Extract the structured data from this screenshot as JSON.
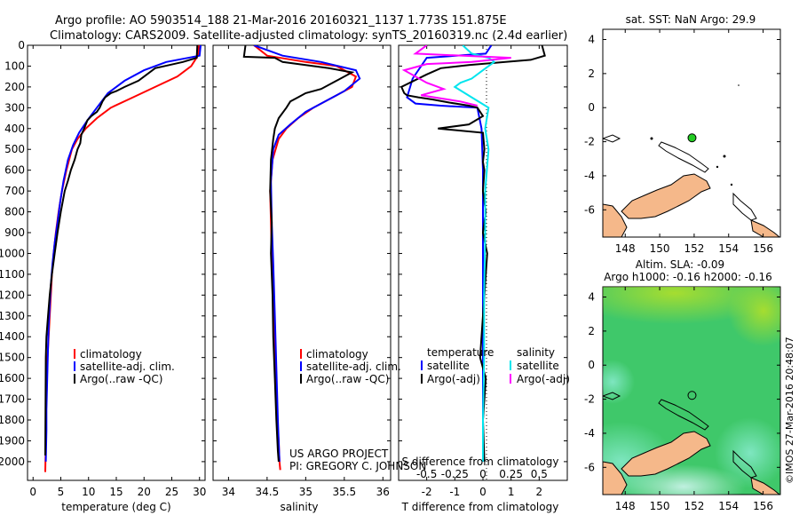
{
  "header": {
    "line1": "Argo profile: AO 5903514_188 21-Mar-2016 20160321_1137 1.773S 151.875E",
    "line2": "Climatology: CARS2009. Satellite-adjusted climatology: synTS_20160319.nc (2.4d earlier)"
  },
  "colors": {
    "climatology": "#ff0000",
    "satellite": "#0000ff",
    "argo": "#000000",
    "salinity_satellite": "#00e5ee",
    "salinity_argo": "#ff00ff",
    "land": "#f5b88a",
    "float_marker_green": "#22cc22"
  },
  "chart_data": [
    {
      "type": "line",
      "name": "temperature-profile",
      "xlabel": "temperature (deg C)",
      "xlim": [
        -1,
        31
      ],
      "xticks": [
        0,
        5,
        10,
        15,
        20,
        25,
        30
      ],
      "ylim": [
        2090,
        0
      ],
      "yticks": [
        0,
        100,
        200,
        300,
        400,
        500,
        600,
        700,
        800,
        900,
        1000,
        1100,
        1200,
        1300,
        1400,
        1500,
        1600,
        1700,
        1800,
        1900,
        2000
      ],
      "legend": {
        "position": "lower-left",
        "items": [
          "climatology",
          "satellite-adj. clim.",
          "Argo(..raw -QC)"
        ]
      },
      "series": [
        {
          "name": "climatology",
          "color": "#ff0000",
          "x": [
            29.9,
            29.7,
            28.5,
            26,
            22,
            18,
            14,
            11.5,
            9.5,
            8,
            7,
            6,
            5.2,
            4.6,
            4.1,
            3.7,
            3.4,
            3.2,
            3,
            2.8,
            2.6,
            2.5,
            2.4,
            2.3,
            2.3,
            2.2
          ],
          "y": [
            0,
            50,
            100,
            150,
            200,
            250,
            300,
            350,
            400,
            450,
            500,
            600,
            700,
            800,
            900,
            1000,
            1100,
            1200,
            1300,
            1400,
            1500,
            1600,
            1700,
            1800,
            1900,
            2050
          ]
        },
        {
          "name": "satellite-adj. clim.",
          "color": "#0000ff",
          "x": [
            30.2,
            30,
            24,
            20,
            16.5,
            13.5,
            11.5,
            9.8,
            8.3,
            7.2,
            6.3,
            5.5,
            4.9,
            4.4,
            3.9,
            3.5,
            3.2,
            3,
            2.8,
            2.7,
            2.6,
            2.5,
            2.4,
            2.4,
            2.3
          ],
          "y": [
            0,
            50,
            80,
            120,
            170,
            230,
            300,
            360,
            420,
            480,
            550,
            650,
            750,
            850,
            950,
            1050,
            1150,
            1250,
            1350,
            1450,
            1550,
            1650,
            1750,
            1850,
            2000
          ]
        },
        {
          "name": "Argo(..raw -QC)",
          "color": "#000000",
          "x": [
            29.6,
            29.5,
            27,
            24.5,
            22,
            20,
            19,
            16.5,
            15,
            14,
            13.5,
            13,
            12.5,
            12,
            11.5,
            10.5,
            9.8,
            9.2,
            8.7,
            8.5,
            8,
            7.5,
            6.8,
            6.3,
            5.7,
            5,
            4.4,
            3.9,
            3.4,
            3,
            2.7,
            2.4,
            2.3,
            2.2
          ],
          "y": [
            0,
            60,
            80,
            95,
            110,
            150,
            170,
            200,
            220,
            230,
            240,
            250,
            270,
            300,
            320,
            340,
            360,
            400,
            430,
            470,
            500,
            550,
            600,
            650,
            700,
            800,
            900,
            1000,
            1100,
            1200,
            1300,
            1400,
            1500,
            1970
          ]
        }
      ]
    },
    {
      "type": "line",
      "name": "salinity-profile",
      "xlabel": "salinity",
      "xlim": [
        33.8,
        36.1
      ],
      "xticks": [
        34,
        34.5,
        35,
        35.5,
        36
      ],
      "ylim": [
        2090,
        0
      ],
      "legend": {
        "position": "lower-left",
        "items": [
          "climatology",
          "satellite-adj. clim.",
          "Argo(..raw -QC)"
        ]
      },
      "annotation": [
        "US ARGO PROJECT",
        "PI: GREGORY C. JOHNSON"
      ],
      "series": [
        {
          "name": "climatology",
          "color": "#ff0000",
          "x": [
            34.33,
            34.5,
            35,
            35.4,
            35.65,
            35.6,
            35.35,
            35.1,
            34.9,
            34.75,
            34.65,
            34.57,
            34.54,
            34.55,
            34.56,
            34.58,
            34.6,
            34.62,
            34.63,
            34.65,
            34.66,
            34.67
          ],
          "y": [
            0,
            50,
            80,
            100,
            150,
            200,
            250,
            300,
            350,
            400,
            450,
            550,
            700,
            850,
            1000,
            1200,
            1400,
            1600,
            1800,
            1900,
            2000,
            2040
          ]
        },
        {
          "name": "satellite-adj. clim.",
          "color": "#0000ff",
          "x": [
            34.33,
            34.7,
            35.2,
            35.65,
            35.7,
            35.5,
            35.25,
            35,
            34.8,
            34.65,
            34.58,
            34.55,
            34.56,
            34.58,
            34.6,
            34.62,
            34.64,
            34.66
          ],
          "y": [
            0,
            50,
            80,
            120,
            160,
            220,
            270,
            320,
            380,
            430,
            500,
            650,
            850,
            1050,
            1300,
            1550,
            1800,
            2000
          ]
        },
        {
          "name": "Argo(..raw -QC)",
          "color": "#000000",
          "x": [
            34.22,
            34.2,
            34.6,
            34.7,
            35.3,
            35.6,
            35.4,
            35.2,
            35,
            34.9,
            34.8,
            34.75,
            34.65,
            34.6,
            34.58,
            34.55,
            34.54,
            34.56,
            34.55,
            34.57,
            34.58,
            34.6,
            34.62,
            34.64,
            34.65
          ],
          "y": [
            0,
            55,
            60,
            80,
            110,
            130,
            170,
            210,
            230,
            250,
            270,
            300,
            350,
            400,
            450,
            550,
            700,
            850,
            1000,
            1200,
            1400,
            1600,
            1800,
            1950,
            2000
          ]
        }
      ]
    },
    {
      "type": "line",
      "name": "difference-profile",
      "xlabel": "T difference from climatology",
      "xlim": [
        -3,
        3
      ],
      "xticks": [
        -2,
        -1,
        0,
        1,
        2
      ],
      "salinity_axis_label": "S difference from climatology",
      "salinity_xticks": [
        "-0.5",
        "-0.25",
        "0",
        "0.25",
        "0.5"
      ],
      "ylim": [
        2090,
        0
      ],
      "legend": {
        "position": "lower-left",
        "temperature_title": "temperature",
        "salinity_title": "salinity",
        "items": [
          "satellite",
          "Argo(-adj)",
          "satellite",
          "Argo(-adj)"
        ]
      },
      "series": [
        {
          "name": "temperature satellite",
          "color": "#0000ff",
          "x": [
            0.3,
            0.1,
            -2,
            -2.5,
            -2.7,
            -2.4,
            -1.5,
            -0.2,
            -0.05,
            0,
            0,
            0,
            0,
            0
          ],
          "y": [
            0,
            40,
            60,
            160,
            250,
            280,
            290,
            300,
            400,
            600,
            1000,
            1400,
            1700,
            2000
          ]
        },
        {
          "name": "temperature Argo(-adj)",
          "color": "#000000",
          "x": [
            2.1,
            2.2,
            1.7,
            0.8,
            -0.5,
            -1.5,
            -2,
            -2.9,
            -2.8,
            -2.7,
            -2.3,
            -1.8,
            -1.2,
            -0.5,
            -0.2,
            0,
            -0.5,
            -1.6,
            0,
            0.05,
            0,
            0.05,
            0,
            0.1,
            0,
            0.15,
            0,
            -0.1,
            0.1,
            0,
            0.05
          ],
          "y": [
            0,
            50,
            70,
            80,
            95,
            110,
            140,
            200,
            230,
            240,
            250,
            260,
            275,
            290,
            300,
            340,
            380,
            400,
            420,
            500,
            560,
            600,
            700,
            800,
            900,
            1000,
            1300,
            1500,
            1600,
            1800,
            2000
          ]
        },
        {
          "name": "salinity satellite",
          "color": "#00e5ee",
          "s": [
            -0.18,
            -0.1,
            0.05,
            0.1,
            0,
            -0.1,
            -0.2,
            -0.25,
            -0.1,
            0.05,
            0.02,
            0.05,
            0.02,
            0.02,
            0.01,
            0.01,
            0,
            0
          ],
          "y": [
            0,
            40,
            60,
            80,
            120,
            160,
            180,
            200,
            250,
            300,
            400,
            500,
            700,
            900,
            1200,
            1500,
            1800,
            2000
          ]
        },
        {
          "name": "salinity Argo(-adj)",
          "color": "#ff00ff",
          "s": [
            -0.5,
            -0.6,
            0.25,
            -0.1,
            -0.5,
            -0.7,
            -0.5,
            -0.35,
            -0.55,
            -0.2,
            -0.05
          ],
          "y": [
            0,
            40,
            60,
            80,
            90,
            120,
            180,
            210,
            240,
            270,
            290
          ]
        }
      ]
    },
    {
      "type": "map",
      "name": "sst-map",
      "title": "sat. SST: NaN Argo: 29.9",
      "xlim": [
        146.7,
        157
      ],
      "xticks": [
        148,
        150,
        152,
        154,
        156
      ],
      "ylim": [
        -7.6,
        4.6
      ],
      "yticks": [
        4,
        2,
        0,
        -2,
        -4,
        -6
      ],
      "float_position": {
        "lon": 151.875,
        "lat": -1.773
      }
    },
    {
      "type": "heatmap",
      "name": "sla-map",
      "title_line1": "Altim. SLA: -0.09",
      "title_line2": "Argo h1000: -0.16 h2000: -0.16",
      "xlim": [
        146.7,
        157
      ],
      "xticks": [
        148,
        150,
        152,
        154,
        156
      ],
      "ylim": [
        -7.6,
        4.6
      ],
      "yticks": [
        4,
        2,
        0,
        -2,
        -4,
        -6
      ],
      "float_position": {
        "lon": 151.875,
        "lat": -1.773
      }
    }
  ],
  "credit": "©IMOS 27-Mar-2016 20:48:07"
}
